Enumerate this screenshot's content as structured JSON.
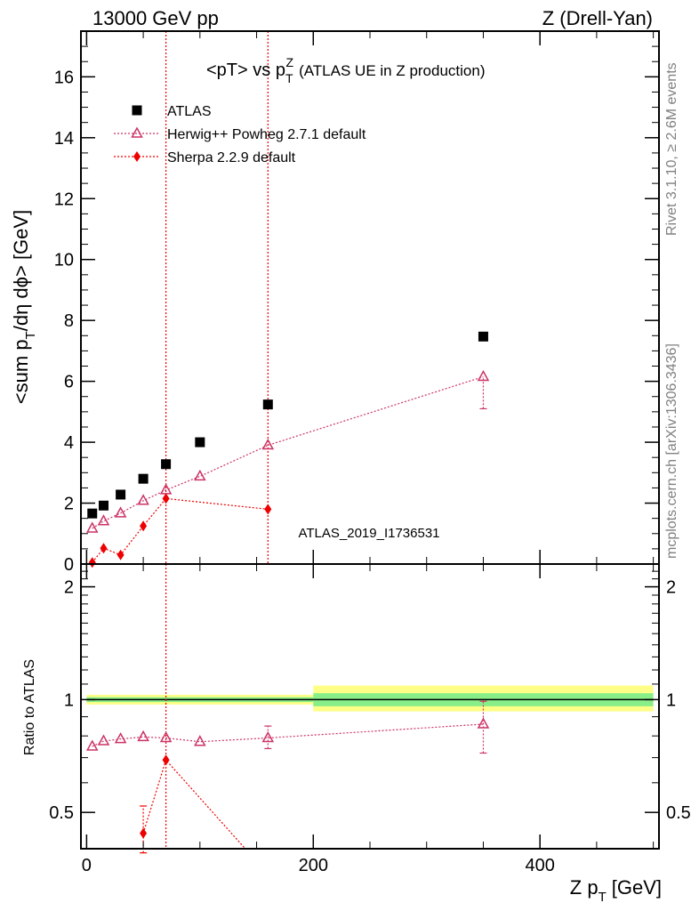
{
  "header": {
    "left": "13000 GeV pp",
    "right": "Z (Drell-Yan)"
  },
  "side_text": {
    "rivet": "Rivet 3.1.10, ≥ 2.6M events",
    "mcplots": "mcplots.cern.ch [arXiv:1306.3436]"
  },
  "watermark": "ATLAS_2019_I1736531",
  "colors": {
    "atlas": "#000000",
    "herwig": "#cc3366",
    "sherpa": "#ee0000",
    "band_inner": "#88ee88",
    "band_outer": "#ffff88"
  },
  "chart_data": [
    {
      "type": "scatter",
      "panel": "main",
      "title_parts": {
        "a": "<pT> vs p",
        "sup": "Z",
        "sub": "T",
        "rest": "(ATLAS UE in Z production)"
      },
      "ylabel_parts": {
        "a": "<sum p",
        "sub1": "T",
        "b": "/dη dϕ> [GeV]"
      },
      "xlim": [
        -5,
        505
      ],
      "ylim": [
        0,
        17.5
      ],
      "y_ticks": [
        0,
        2,
        4,
        6,
        8,
        10,
        12,
        14,
        16
      ],
      "legend_position": "top-left",
      "series": [
        {
          "name": "ATLAS",
          "marker": "square",
          "x": [
            5,
            15,
            30,
            50,
            70,
            100,
            160,
            350
          ],
          "y": [
            1.66,
            1.92,
            2.28,
            2.8,
            3.28,
            4.0,
            5.24,
            7.47
          ]
        },
        {
          "name": "Herwig++ Powheg 2.7.1 default",
          "marker": "triangle-open",
          "x": [
            5,
            15,
            30,
            50,
            70,
            100,
            160,
            350
          ],
          "y": [
            1.17,
            1.41,
            1.67,
            2.08,
            2.43,
            2.88,
            3.9,
            6.15
          ],
          "yerr_lo": [
            0,
            0,
            0,
            0,
            0,
            0,
            0,
            1.05
          ],
          "yerr_hi": [
            0,
            0,
            0,
            0,
            0,
            0,
            0,
            0
          ]
        },
        {
          "name": "Sherpa 2.2.9 default",
          "marker": "diamond",
          "x": [
            5,
            15,
            30,
            50,
            70,
            160
          ],
          "y": [
            0.05,
            0.52,
            0.3,
            1.25,
            2.15,
            1.8
          ]
        }
      ],
      "vertical_lines_x": [
        70,
        160
      ]
    },
    {
      "type": "scatter",
      "panel": "ratio",
      "ylabel": "Ratio to ATLAS",
      "xlabel_parts": {
        "a": "Z p",
        "sub": "T",
        "b": "[GeV]"
      },
      "xlim": [
        -5,
        505
      ],
      "ylim": [
        0.4,
        2.3
      ],
      "log_y": true,
      "x_ticks": [
        0,
        200,
        400
      ],
      "y_ticks": [
        0.5,
        1,
        2
      ],
      "reference_line": 1,
      "uncertainty_bands": [
        {
          "x_from": 0,
          "x_to": 200,
          "inner": [
            0.985,
            1.015
          ],
          "outer": [
            0.97,
            1.03
          ]
        },
        {
          "x_from": 200,
          "x_to": 500,
          "inner": [
            0.96,
            1.04
          ],
          "outer": [
            0.93,
            1.09
          ]
        }
      ],
      "series": [
        {
          "name": "Herwig++ Powheg 2.7.1 default",
          "x": [
            5,
            15,
            30,
            50,
            70,
            100,
            160,
            350
          ],
          "y": [
            0.75,
            0.775,
            0.785,
            0.795,
            0.79,
            0.772,
            0.79,
            0.86
          ],
          "yerr_lo": [
            0,
            0,
            0,
            0,
            0,
            0,
            0.05,
            0.14
          ],
          "yerr_hi": [
            0,
            0,
            0,
            0,
            0,
            0,
            0.06,
            0.13
          ]
        },
        {
          "name": "Sherpa 2.2.9 default",
          "x": [
            50,
            70,
            140
          ],
          "y": [
            0.44,
            0.69,
            0.4
          ],
          "yerr_lo": [
            0.05,
            0,
            0
          ],
          "yerr_hi": [
            0.08,
            0,
            0
          ]
        }
      ],
      "vertical_lines_x": [
        70
      ]
    }
  ]
}
